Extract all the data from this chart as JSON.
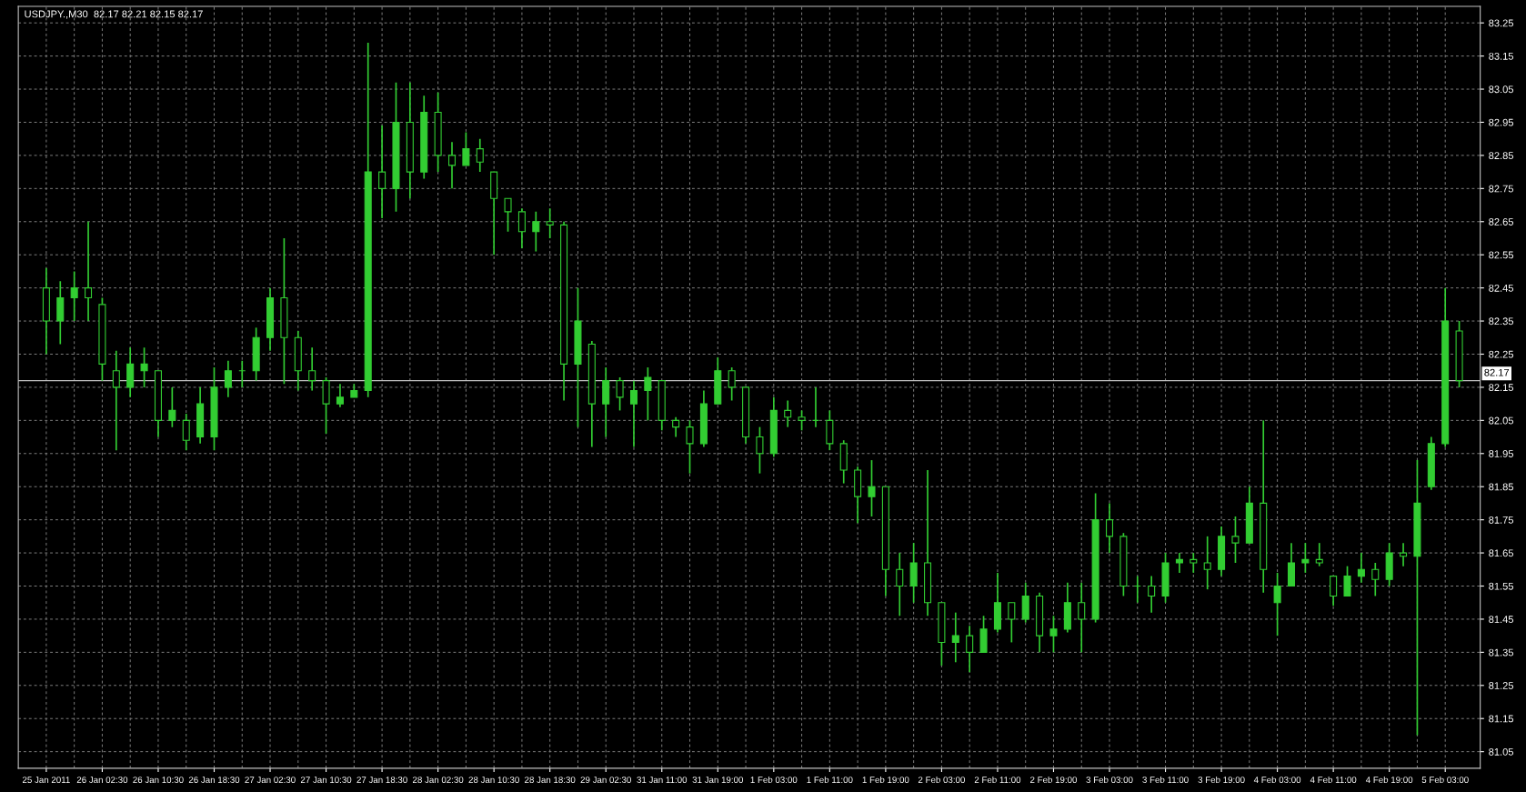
{
  "chart_data": {
    "type": "candlestick",
    "title": "USDJPY.,M30  82.17 82.21 82.15 82.17",
    "categories": [
      "25 Jan 2011",
      null,
      null,
      null,
      "26 Jan 02:30",
      null,
      null,
      null,
      "26 Jan 10:30",
      null,
      null,
      null,
      "26 Jan 18:30",
      null,
      null,
      null,
      "27 Jan 02:30",
      null,
      null,
      null,
      "27 Jan 10:30",
      null,
      null,
      null,
      "27 Jan 18:30",
      null,
      null,
      null,
      "28 Jan 02:30",
      null,
      null,
      null,
      "28 Jan 10:30",
      null,
      null,
      null,
      "28 Jan 18:30",
      null,
      null,
      null,
      "29 Jan 02:30",
      null,
      null,
      null,
      "31 Jan 11:00",
      null,
      null,
      null,
      "31 Jan 19:00",
      null,
      null,
      null,
      "1 Feb 03:00",
      null,
      null,
      null,
      "1 Feb 11:00",
      null,
      null,
      null,
      "1 Feb 19:00",
      null,
      null,
      null,
      "2 Feb 03:00",
      null,
      null,
      null,
      "2 Feb 11:00",
      null,
      null,
      null,
      "2 Feb 19:00",
      null,
      null,
      null,
      "3 Feb 03:00",
      null,
      null,
      null,
      "3 Feb 11:00",
      null,
      null,
      null,
      "3 Feb 19:00",
      null,
      null,
      null,
      "4 Feb 03:00",
      null,
      null,
      null,
      "4 Feb 11:00",
      null,
      null,
      null,
      "4 Feb 19:00",
      null,
      null,
      null,
      "5 Feb 03:00",
      null
    ],
    "ohlc": [
      [
        82.45,
        82.51,
        82.25,
        82.35
      ],
      [
        82.35,
        82.47,
        82.28,
        82.42
      ],
      [
        82.42,
        82.5,
        82.35,
        82.45
      ],
      [
        82.45,
        82.65,
        82.35,
        82.42
      ],
      [
        82.4,
        82.42,
        82.17,
        82.22
      ],
      [
        82.2,
        82.26,
        81.96,
        82.15
      ],
      [
        82.15,
        82.27,
        82.12,
        82.22
      ],
      [
        82.2,
        82.27,
        82.15,
        82.22
      ],
      [
        82.2,
        82.2,
        82.0,
        82.05
      ],
      [
        82.05,
        82.15,
        82.03,
        82.08
      ],
      [
        82.05,
        82.07,
        81.96,
        81.99
      ],
      [
        82.0,
        82.15,
        81.98,
        82.1
      ],
      [
        82.0,
        82.21,
        81.96,
        82.15
      ],
      [
        82.15,
        82.23,
        82.12,
        82.2
      ],
      [
        82.2,
        82.23,
        82.15,
        82.2
      ],
      [
        82.2,
        82.33,
        82.17,
        82.3
      ],
      [
        82.3,
        82.45,
        82.26,
        82.42
      ],
      [
        82.42,
        82.6,
        82.16,
        82.3
      ],
      [
        82.3,
        82.32,
        82.14,
        82.2
      ],
      [
        82.2,
        82.27,
        82.14,
        82.17
      ],
      [
        82.17,
        82.18,
        82.01,
        82.1
      ],
      [
        82.1,
        82.16,
        82.09,
        82.12
      ],
      [
        82.12,
        82.16,
        82.12,
        82.14
      ],
      [
        82.14,
        83.19,
        82.12,
        82.8
      ],
      [
        82.8,
        82.94,
        82.66,
        82.75
      ],
      [
        82.75,
        83.07,
        82.68,
        82.95
      ],
      [
        82.95,
        83.07,
        82.72,
        82.8
      ],
      [
        82.8,
        83.03,
        82.78,
        82.98
      ],
      [
        82.98,
        83.04,
        82.8,
        82.85
      ],
      [
        82.85,
        82.89,
        82.75,
        82.82
      ],
      [
        82.82,
        82.92,
        82.82,
        82.87
      ],
      [
        82.87,
        82.9,
        82.8,
        82.83
      ],
      [
        82.8,
        82.8,
        82.55,
        82.72
      ],
      [
        82.72,
        82.72,
        82.62,
        82.68
      ],
      [
        82.68,
        82.69,
        82.57,
        82.62
      ],
      [
        82.62,
        82.68,
        82.56,
        82.65
      ],
      [
        82.65,
        82.69,
        82.6,
        82.64
      ],
      [
        82.64,
        82.65,
        82.11,
        82.22
      ],
      [
        82.22,
        82.45,
        82.03,
        82.35
      ],
      [
        82.28,
        82.29,
        81.97,
        82.1
      ],
      [
        82.1,
        82.21,
        82.0,
        82.17
      ],
      [
        82.17,
        82.18,
        82.08,
        82.12
      ],
      [
        82.1,
        82.17,
        81.97,
        82.14
      ],
      [
        82.14,
        82.21,
        82.05,
        82.18
      ],
      [
        82.17,
        82.17,
        82.02,
        82.05
      ],
      [
        82.05,
        82.06,
        82.0,
        82.03
      ],
      [
        82.03,
        82.05,
        81.89,
        81.98
      ],
      [
        81.98,
        82.14,
        81.97,
        82.1
      ],
      [
        82.1,
        82.24,
        82.1,
        82.2
      ],
      [
        82.2,
        82.21,
        82.11,
        82.15
      ],
      [
        82.15,
        82.15,
        81.98,
        82.0
      ],
      [
        82.0,
        82.03,
        81.89,
        81.95
      ],
      [
        81.95,
        82.12,
        81.94,
        82.08
      ],
      [
        82.08,
        82.11,
        82.03,
        82.06
      ],
      [
        82.06,
        82.08,
        82.02,
        82.05
      ],
      [
        82.05,
        82.15,
        82.03,
        82.05
      ],
      [
        82.05,
        82.08,
        81.96,
        81.98
      ],
      [
        81.98,
        81.99,
        81.86,
        81.9
      ],
      [
        81.9,
        81.91,
        81.74,
        81.82
      ],
      [
        81.82,
        81.93,
        81.76,
        81.85
      ],
      [
        81.85,
        81.85,
        81.52,
        81.6
      ],
      [
        81.6,
        81.65,
        81.46,
        81.55
      ],
      [
        81.55,
        81.68,
        81.5,
        81.62
      ],
      [
        81.62,
        81.9,
        81.46,
        81.5
      ],
      [
        81.5,
        81.5,
        81.31,
        81.38
      ],
      [
        81.38,
        81.47,
        81.32,
        81.4
      ],
      [
        81.4,
        81.43,
        81.29,
        81.35
      ],
      [
        81.35,
        81.46,
        81.35,
        81.42
      ],
      [
        81.42,
        81.59,
        81.41,
        81.5
      ],
      [
        81.5,
        81.5,
        81.38,
        81.45
      ],
      [
        81.45,
        81.56,
        81.44,
        81.52
      ],
      [
        81.52,
        81.53,
        81.35,
        81.4
      ],
      [
        81.4,
        81.46,
        81.35,
        81.42
      ],
      [
        81.42,
        81.56,
        81.41,
        81.5
      ],
      [
        81.5,
        81.56,
        81.35,
        81.45
      ],
      [
        81.45,
        81.83,
        81.44,
        81.75
      ],
      [
        81.75,
        81.8,
        81.65,
        81.7
      ],
      [
        81.7,
        81.71,
        81.52,
        81.55
      ],
      [
        81.55,
        81.58,
        81.5,
        81.55
      ],
      [
        81.55,
        81.58,
        81.47,
        81.52
      ],
      [
        81.52,
        81.65,
        81.5,
        81.62
      ],
      [
        81.62,
        81.65,
        81.59,
        81.63
      ],
      [
        81.63,
        81.65,
        81.59,
        81.62
      ],
      [
        81.62,
        81.7,
        81.54,
        81.6
      ],
      [
        81.6,
        81.73,
        81.58,
        81.7
      ],
      [
        81.7,
        81.76,
        81.62,
        81.68
      ],
      [
        81.68,
        81.85,
        81.68,
        81.8
      ],
      [
        81.8,
        82.05,
        81.53,
        81.6
      ],
      [
        81.5,
        81.59,
        81.4,
        81.55
      ],
      [
        81.55,
        81.68,
        81.55,
        81.62
      ],
      [
        81.62,
        81.68,
        81.59,
        81.63
      ],
      [
        81.63,
        81.68,
        81.61,
        81.62
      ],
      [
        81.58,
        81.58,
        81.49,
        81.52
      ],
      [
        81.52,
        81.61,
        81.52,
        81.58
      ],
      [
        81.58,
        81.65,
        81.56,
        81.6
      ],
      [
        81.6,
        81.62,
        81.52,
        81.57
      ],
      [
        81.57,
        81.68,
        81.55,
        81.65
      ],
      [
        81.65,
        81.68,
        81.61,
        81.64
      ],
      [
        81.64,
        81.93,
        81.1,
        81.8
      ],
      [
        81.85,
        82.0,
        81.84,
        81.98
      ],
      [
        81.98,
        82.45,
        81.97,
        82.35
      ],
      [
        82.32,
        82.35,
        82.15,
        82.17
      ]
    ],
    "color": "#32cd32",
    "ylim": [
      81.0,
      83.3
    ],
    "yticks": [
      81.05,
      81.15,
      81.25,
      81.35,
      81.45,
      81.55,
      81.65,
      81.75,
      81.85,
      81.95,
      82.05,
      82.15,
      82.25,
      82.35,
      82.45,
      82.55,
      82.65,
      82.75,
      82.85,
      82.95,
      83.05,
      83.15,
      83.25
    ],
    "grid": true,
    "ref_lines": [
      {
        "axis": "y",
        "value": 82.17,
        "label": "82.17",
        "color": "#c0c0c0"
      }
    ]
  }
}
